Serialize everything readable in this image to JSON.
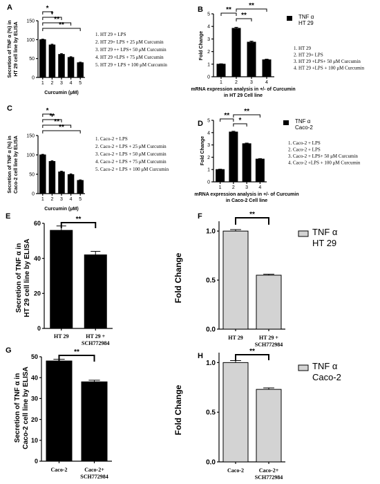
{
  "chart_data": [
    {
      "panel": "A",
      "type": "bar",
      "categories": [
        "1",
        "2",
        "3",
        "4",
        "5"
      ],
      "values": [
        100,
        86,
        61,
        53,
        39
      ],
      "errors": [
        1.5,
        2,
        2,
        2,
        1.5
      ],
      "ylabel": "Secretion of TNF α (%) in HT 29 cell line by ELISA",
      "xlabel": "Curcumin (μM)",
      "ylim": [
        0,
        150
      ],
      "yticks": [
        "0",
        "50",
        "100",
        "150"
      ],
      "bar_color": "#000000",
      "significance": [
        {
          "from": 1,
          "to": 2,
          "text": "*"
        },
        {
          "from": 1,
          "to": 3,
          "text": "*"
        },
        {
          "from": 1,
          "to": 4,
          "text": "**"
        },
        {
          "from": 1,
          "to": 5,
          "text": "**"
        }
      ],
      "legend_items": [
        "1. HT 29 + LPS",
        "2. HT 29+ LPS + 25 μM Curcumin",
        "3. HT 29 ++ LPS+ 50 μM Curcumin",
        "4. HT 29 +LPS + 75 μM Curcumin",
        "5. HT 29 + LPS + 100 μM Curcumin"
      ]
    },
    {
      "panel": "B",
      "type": "bar",
      "categories": [
        "1",
        "2",
        "3",
        "4"
      ],
      "values": [
        1.0,
        3.85,
        2.75,
        1.35
      ],
      "errors": [
        0.03,
        0.08,
        0.08,
        0.05
      ],
      "ylabel": "Fold Change",
      "xlabel": "mRNA expression analysis in +/- of Curcumin in HT 29 Cell line",
      "ylim": [
        0,
        5
      ],
      "yticks": [
        "0",
        "1",
        "2",
        "3",
        "4",
        "5"
      ],
      "bar_color": "#000000",
      "series_legend": [
        "TNF α",
        "HT 29"
      ],
      "significance": [
        {
          "from": 1,
          "to": 2,
          "text": "**"
        },
        {
          "from": 2,
          "to": 3,
          "text": "**"
        },
        {
          "from": 2,
          "to": 4,
          "text": "**"
        }
      ],
      "legend_items": [
        "1. HT 29",
        "2. HT 29+ LPS",
        "3. HT 29 +LPS+ 50 μM Curcumin",
        "4. HT 29 +LPS + 100 μM Curcumin"
      ]
    },
    {
      "panel": "C",
      "type": "bar",
      "categories": [
        "1",
        "2",
        "3",
        "4",
        "5"
      ],
      "values": [
        100,
        83,
        56,
        49,
        34
      ],
      "errors": [
        1.5,
        2,
        2,
        2,
        1.5
      ],
      "ylabel": "Secretion of TNF α (%) in Caco-2 cell line by ELISA",
      "xlabel": "Curcumin (μM)",
      "ylim": [
        0,
        150
      ],
      "yticks": [
        "0",
        "50",
        "100",
        "150"
      ],
      "bar_color": "#000000",
      "significance": [
        {
          "from": 1,
          "to": 2,
          "text": "*"
        },
        {
          "from": 1,
          "to": 3,
          "text": "**"
        },
        {
          "from": 1,
          "to": 4,
          "text": "**"
        },
        {
          "from": 1,
          "to": 5,
          "text": "**"
        }
      ],
      "legend_items": [
        "1. Caco-2 + LPS",
        "2. Caco-2 + LPS + 25 μM Curcumin",
        "3. Caco-2 + LPS + 50 μM Curcumin",
        "4. Caco-2 + LPS + 75 μM Curcumin",
        "5. Caco-2 + LPS + 100 μM Curcumin"
      ]
    },
    {
      "panel": "D",
      "type": "bar",
      "categories": [
        "1",
        "2",
        "3",
        "4"
      ],
      "values": [
        1.0,
        4.05,
        3.1,
        1.85
      ],
      "errors": [
        0.03,
        0.06,
        0.05,
        0.04
      ],
      "ylabel": "Fold Change",
      "xlabel": "mRNA expression analysis in +/- of Curcumin in Caco-2 Cell line",
      "ylim": [
        0,
        5
      ],
      "yticks": [
        "0",
        "1",
        "2",
        "3",
        "4",
        "5"
      ],
      "bar_color": "#000000",
      "series_legend": [
        "TNF α",
        "Caco-2"
      ],
      "significance": [
        {
          "from": 1,
          "to": 2,
          "text": "**"
        },
        {
          "from": 2,
          "to": 3,
          "text": "*"
        },
        {
          "from": 2,
          "to": 4,
          "text": "**"
        }
      ],
      "legend_items": [
        "1. Caco-2 + LPS",
        "2. Caco-2 + LPS",
        "3. Caco-2 + LPS+ 50 μM Curcumin",
        "4. Caco-2 +LPS + 100 μM Curcumin"
      ]
    },
    {
      "panel": "E",
      "type": "bar",
      "categories": [
        "HT 29",
        "HT 29 + SCH772984"
      ],
      "values": [
        56,
        42
      ],
      "errors": [
        2.5,
        2
      ],
      "ylabel": "Secretion of TNF α in HT 29 cell line by ELISA",
      "xlabel": "",
      "ylim": [
        0,
        60
      ],
      "yticks": [
        "0",
        "20",
        "40",
        "60"
      ],
      "bar_color": "#000000",
      "significance": [
        {
          "from": 1,
          "to": 2,
          "text": "**"
        }
      ]
    },
    {
      "panel": "F",
      "type": "bar",
      "categories": [
        "HT 29",
        "HT 29 + SCH772984"
      ],
      "values": [
        1.0,
        0.55
      ],
      "errors": [
        0.015,
        0.01
      ],
      "ylabel": "Fold Change",
      "xlabel": "",
      "ylim": [
        0,
        1.1
      ],
      "yticks": [
        "0.0",
        "0.5",
        "1.0"
      ],
      "bar_color": "#d3d3d3",
      "series_legend": [
        "TNF α",
        "HT 29"
      ],
      "significance": [
        {
          "from": 1,
          "to": 2,
          "text": "**"
        }
      ]
    },
    {
      "panel": "G",
      "type": "bar",
      "categories": [
        "Caco-2",
        "Caco-2+ SCH772984"
      ],
      "values": [
        48,
        38
      ],
      "errors": [
        0.8,
        0.8
      ],
      "ylabel": "Secretion of TNF α in Caco-2 cell line by ELISA",
      "xlabel": "",
      "ylim": [
        0,
        50
      ],
      "yticks": [
        "0",
        "10",
        "20",
        "30",
        "40",
        "50"
      ],
      "bar_color": "#000000",
      "significance": [
        {
          "from": 1,
          "to": 2,
          "text": "**"
        }
      ]
    },
    {
      "panel": "H",
      "type": "bar",
      "categories": [
        "Caco-2",
        "Caco-2+ SCH772984"
      ],
      "values": [
        1.0,
        0.73
      ],
      "errors": [
        0.02,
        0.015
      ],
      "ylabel": "Fold Change",
      "xlabel": "",
      "ylim": [
        0,
        1.1
      ],
      "yticks": [
        "0.0",
        "0.5",
        "1.0"
      ],
      "bar_color": "#d3d3d3",
      "series_legend": [
        "TNF α",
        "Caco-2"
      ],
      "significance": [
        {
          "from": 1,
          "to": 2,
          "text": "**"
        }
      ]
    }
  ]
}
